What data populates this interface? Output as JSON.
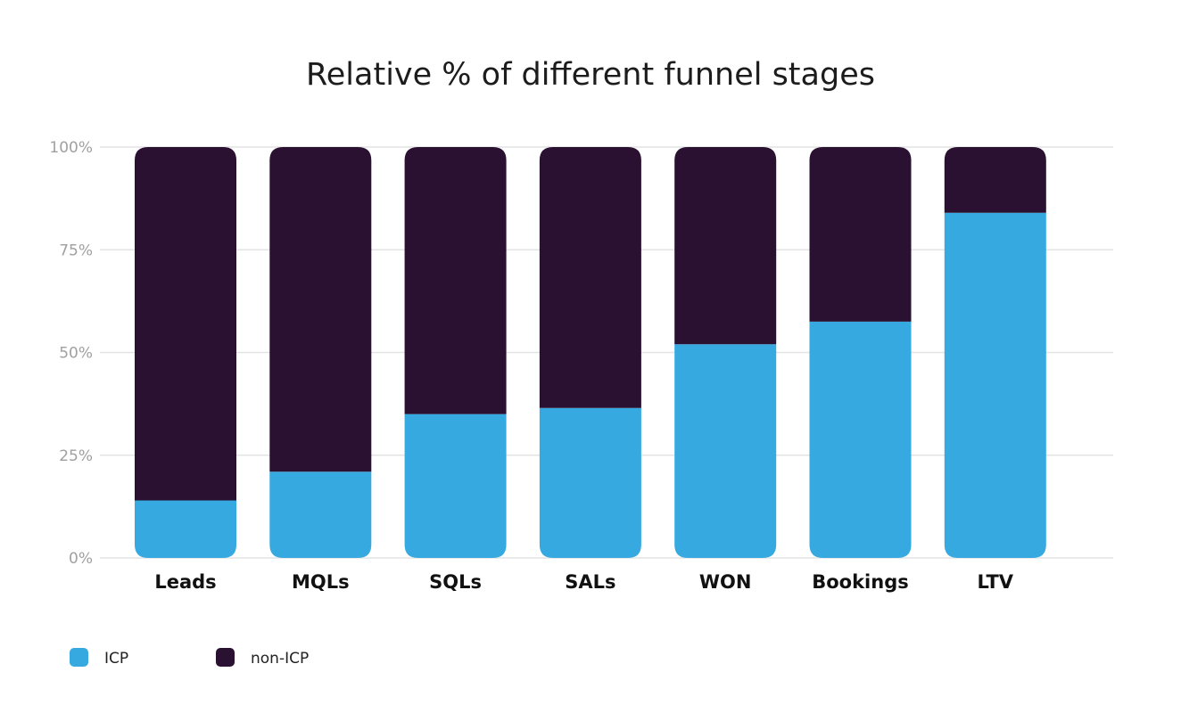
{
  "chart_data": {
    "type": "bar",
    "stacked": true,
    "title": "Relative % of different funnel stages",
    "xlabel": "",
    "ylabel": "",
    "ylim": [
      0,
      100
    ],
    "yticks": [
      0,
      25,
      50,
      75,
      100
    ],
    "ytick_labels": [
      "0%",
      "25%",
      "50%",
      "75%",
      "100%"
    ],
    "grid": true,
    "legend_position": "bottom-left",
    "categories": [
      "Leads",
      "MQLs",
      "SQLs",
      "SALs",
      "WON",
      "Bookings",
      "LTV"
    ],
    "series": [
      {
        "name": "ICP",
        "color": "#36a9e0",
        "values": [
          14,
          21,
          35,
          36.5,
          52,
          57.5,
          84
        ]
      },
      {
        "name": "non-ICP",
        "color": "#2b1131",
        "values": [
          86,
          79,
          65,
          63.5,
          48,
          42.5,
          16
        ]
      }
    ]
  }
}
